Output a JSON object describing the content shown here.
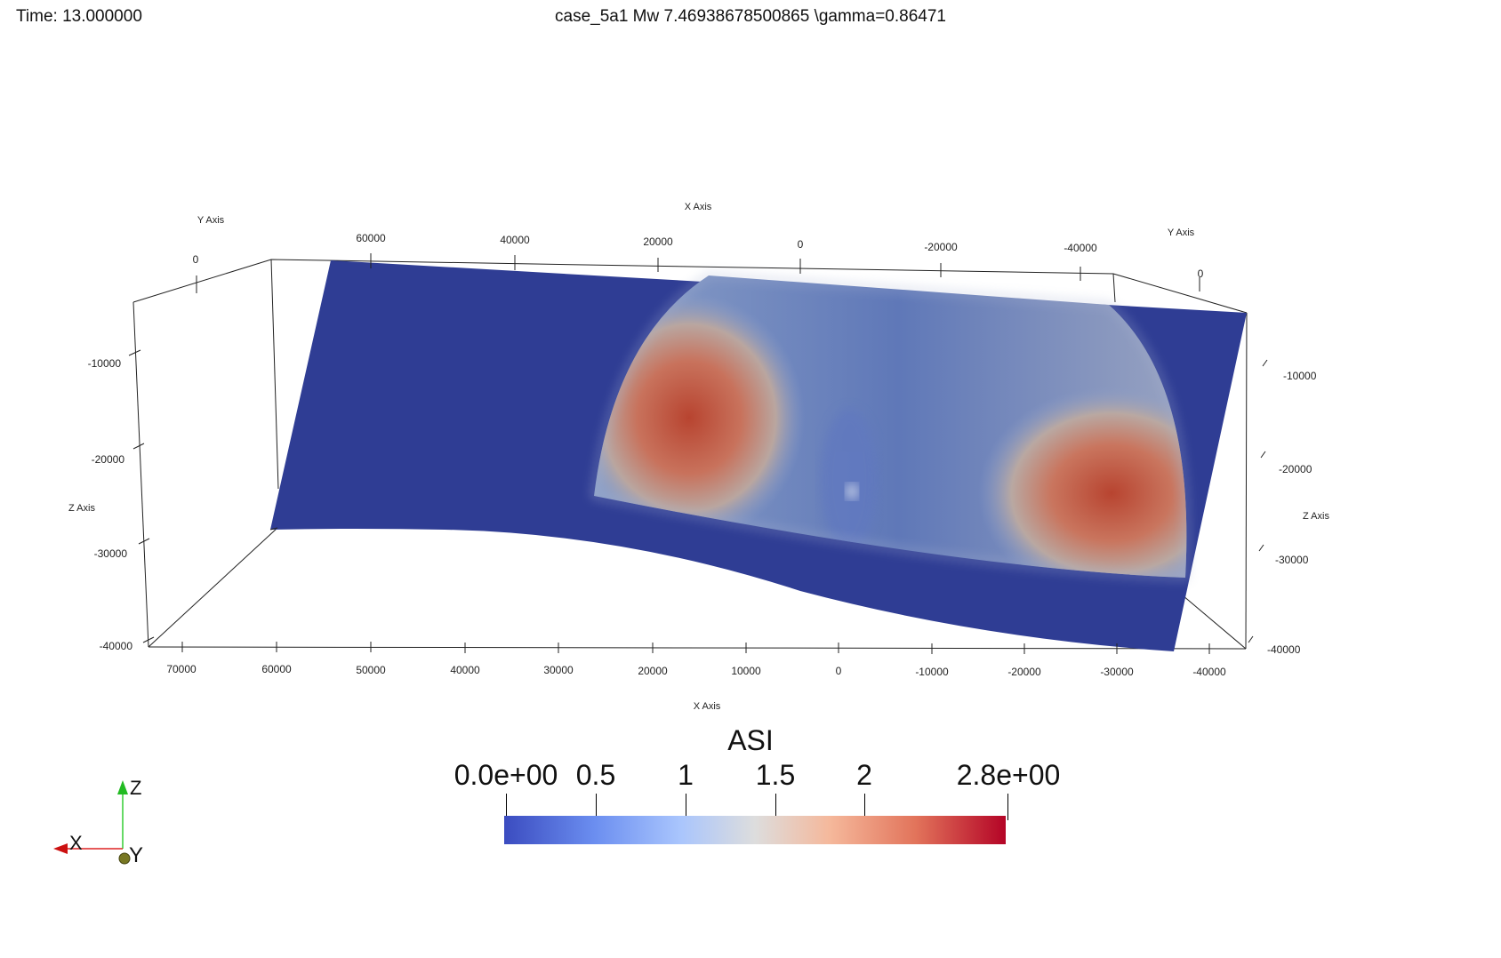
{
  "header": {
    "time": "Time: 13.000000",
    "title": "case_5a1 Mw 7.46938678500865  \\gamma=0.86471"
  },
  "axes": {
    "x_axis_label": "X Axis",
    "y_axis_label": "Y Axis",
    "z_axis_label": "Z Axis",
    "x_ticks_bottom": [
      "70000",
      "60000",
      "50000",
      "40000",
      "30000",
      "20000",
      "10000",
      "0",
      "-10000",
      "-20000",
      "-30000",
      "-40000"
    ],
    "x_ticks_top": [
      "60000",
      "40000",
      "20000",
      "0",
      "-20000",
      "-40000"
    ],
    "y_ticks_left": [
      "0"
    ],
    "y_ticks_right": [
      "0"
    ],
    "z_ticks_left": [
      "-10000",
      "-20000",
      "-30000",
      "-40000"
    ],
    "z_ticks_right": [
      "-10000",
      "-20000",
      "-30000",
      "-40000"
    ]
  },
  "colorbar": {
    "title": "ASI",
    "tick_labels": [
      "0.0e+00",
      "0.5",
      "1",
      "1.5",
      "2",
      "2.8e+00"
    ],
    "range": [
      0.0,
      2.8
    ],
    "colors": [
      "#3b4cc0",
      "#dddddd",
      "#b40426"
    ]
  },
  "orientation": {
    "x": "X",
    "y": "Y",
    "z": "Z"
  },
  "surface": {
    "field": "ASI",
    "base_color": "#2f3d94",
    "high_color": "#b8472f"
  }
}
